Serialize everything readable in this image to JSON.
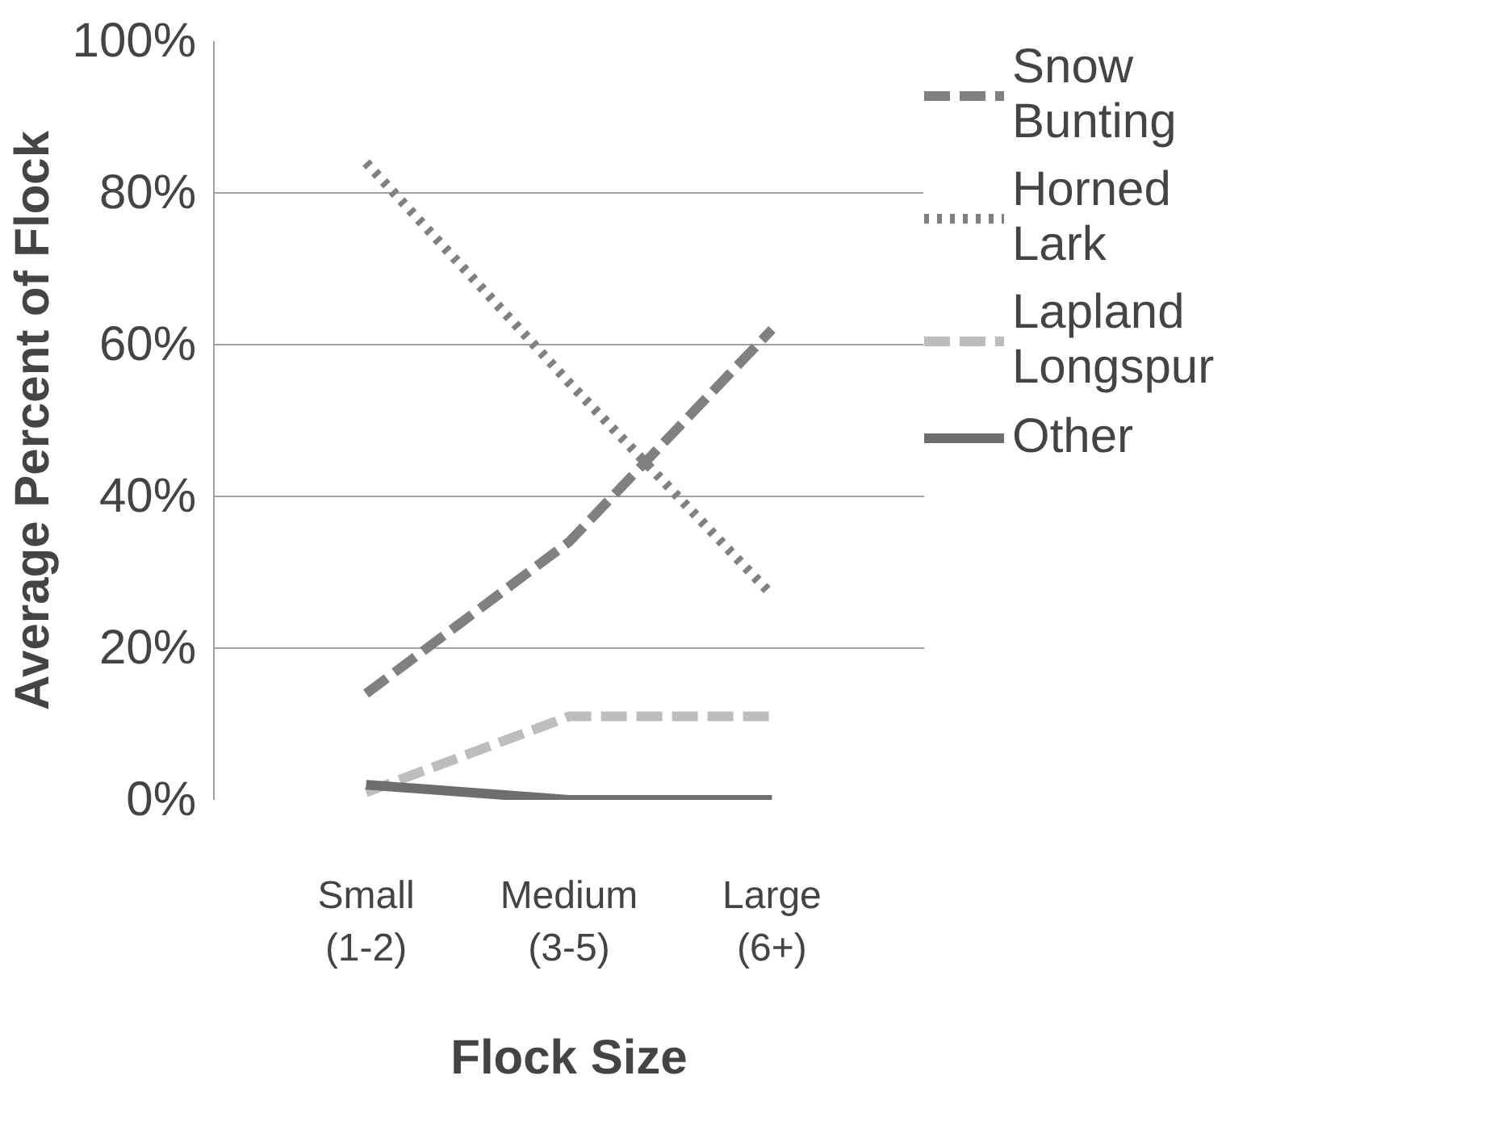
{
  "chart_data": {
    "type": "line",
    "xlabel": "Flock Size",
    "ylabel": "Average Percent of Flock",
    "categories": [
      "Small\n(1-2)",
      "Medium\n(3-5)",
      "Large\n(6+)"
    ],
    "series": [
      {
        "name": "Snow Bunting",
        "color": "#808080",
        "line_style": "dashed",
        "values": [
          14,
          34,
          62
        ]
      },
      {
        "name": "Horned Lark",
        "color": "#808080",
        "line_style": "dotted",
        "values": [
          84,
          55,
          27
        ]
      },
      {
        "name": "Lapland Longspur",
        "color": "#bdbdbd",
        "line_style": "dashed",
        "values": [
          1,
          11,
          11
        ]
      },
      {
        "name": "Other",
        "color": "#6e6e6e",
        "line_style": "solid",
        "values": [
          2,
          0,
          0
        ]
      }
    ],
    "ylim": [
      0,
      100
    ],
    "yticks": [
      {
        "value": 0,
        "label": "0%"
      },
      {
        "value": 20,
        "label": "20%"
      },
      {
        "value": 40,
        "label": "40%"
      },
      {
        "value": 60,
        "label": "60%"
      },
      {
        "value": 80,
        "label": "80%"
      },
      {
        "value": 100,
        "label": "100%"
      }
    ],
    "grid": "y",
    "legend": "right",
    "marker": "none"
  }
}
